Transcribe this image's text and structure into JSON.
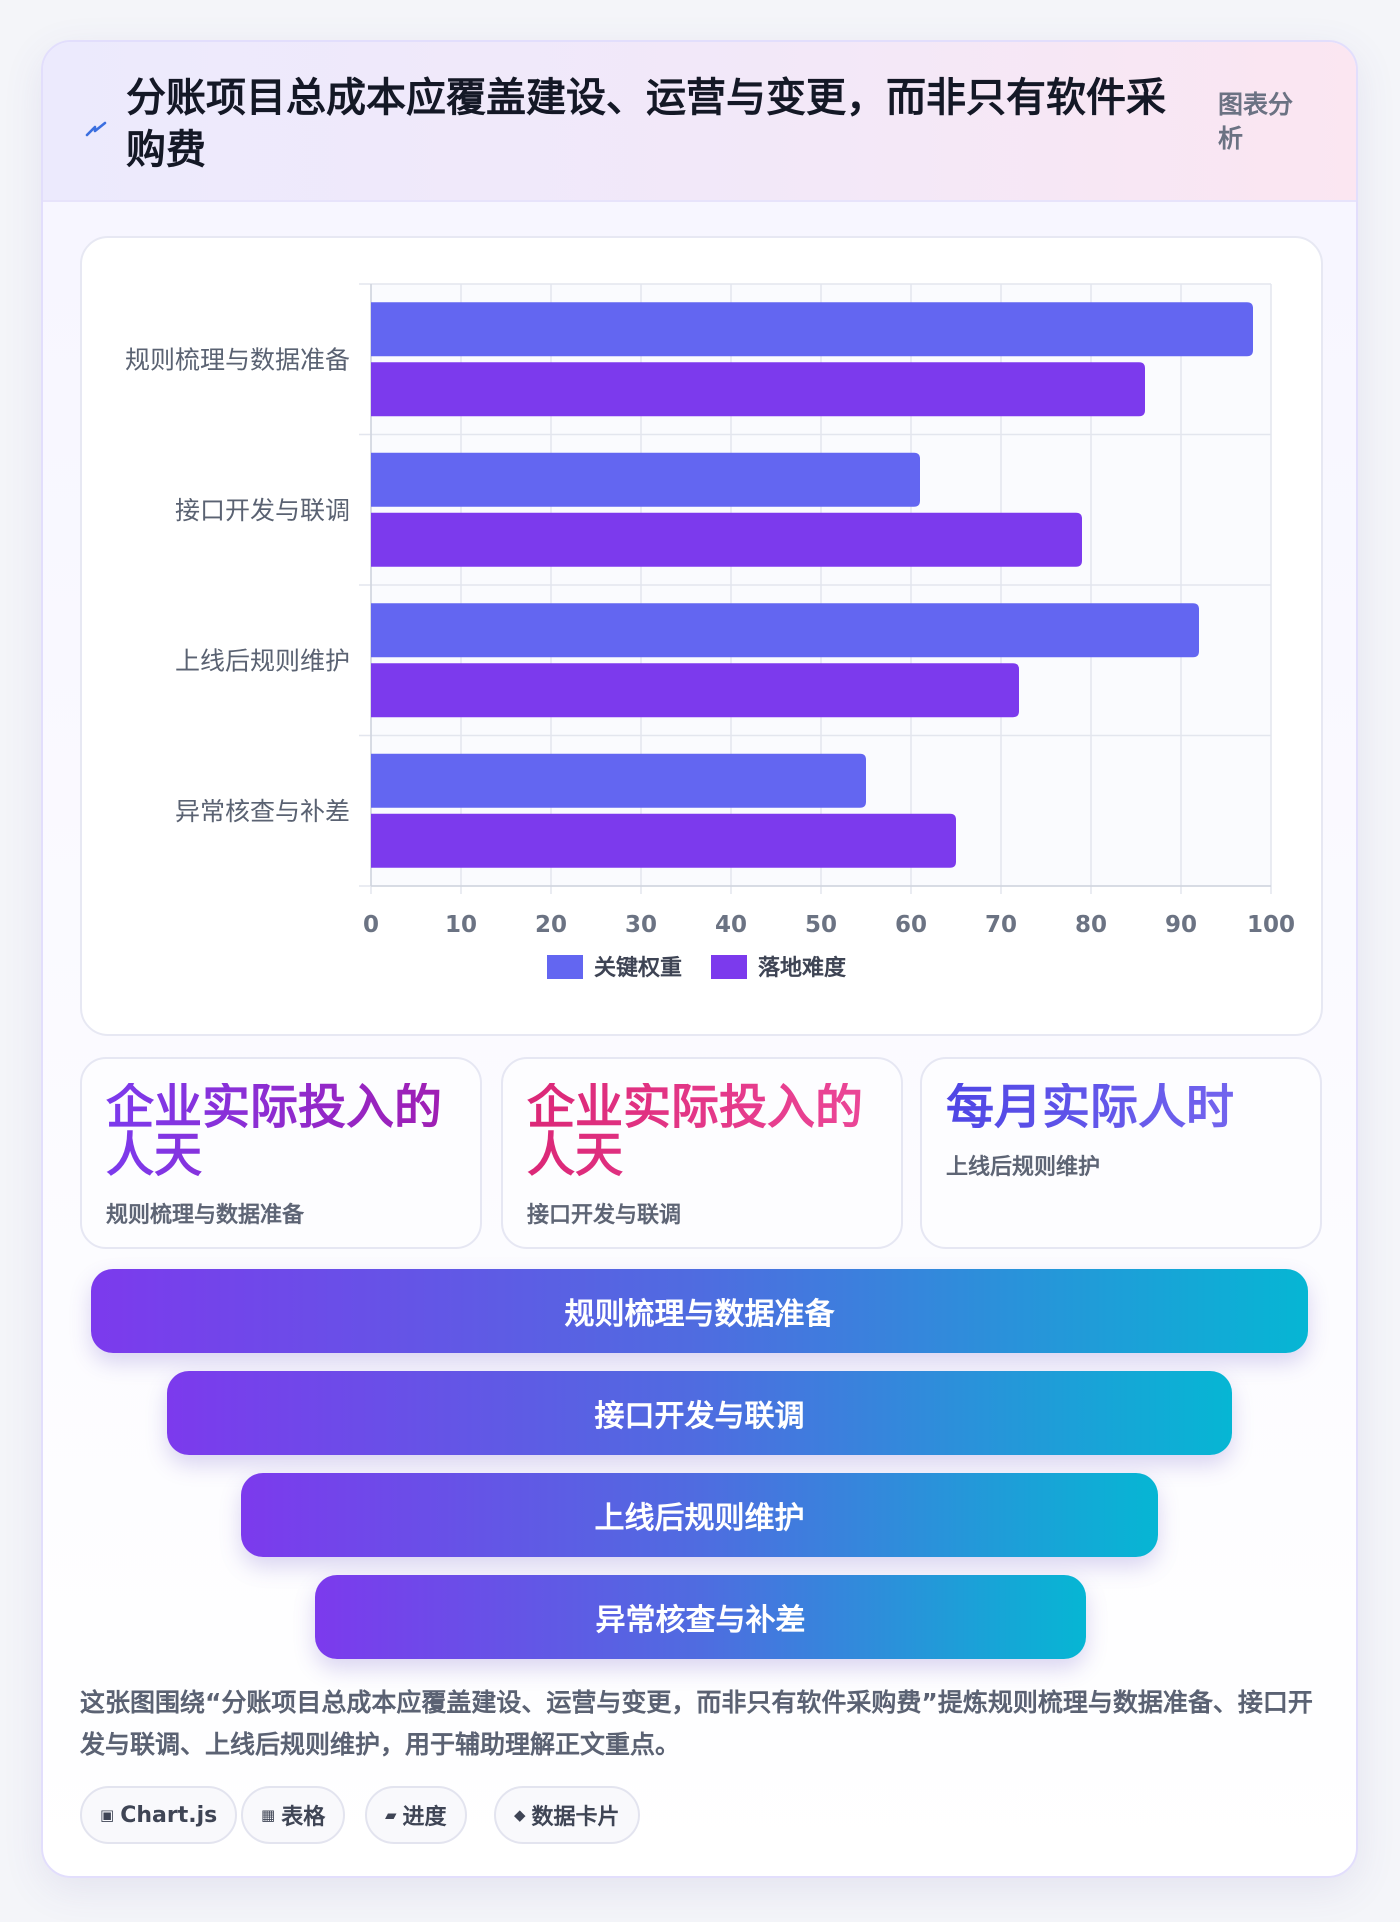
{
  "header": {
    "title": "分账项目总成本应覆盖建设、运营与变更，而非只有软件采购费",
    "tag": "图表分析",
    "icon": "bolt-icon"
  },
  "chart_data": {
    "type": "bar",
    "orientation": "horizontal",
    "categories": [
      "规则梳理与数据准备",
      "接口开发与联调",
      "上线后规则维护",
      "异常核查与补差"
    ],
    "series": [
      {
        "name": "关键权重",
        "values": [
          98,
          61,
          92,
          55
        ],
        "color": "#6366f1"
      },
      {
        "name": "落地难度",
        "values": [
          86,
          79,
          72,
          65
        ],
        "color": "#7c3aed"
      }
    ],
    "xlim": [
      0,
      100
    ],
    "xticks": [
      "0",
      "10",
      "20",
      "30",
      "40",
      "50",
      "60",
      "70",
      "80",
      "90",
      "100"
    ],
    "grid": true,
    "legend_position": "bottom"
  },
  "stats": [
    {
      "value": "企业实际投入的人天",
      "label": "规则梳理与数据准备",
      "gradient": [
        "#7c3aed",
        "#a21caf"
      ]
    },
    {
      "value": "企业实际投入的人天",
      "label": "接口开发与联调",
      "gradient": [
        "#db2777",
        "#ec4899"
      ]
    },
    {
      "value": "每月实际人时",
      "label": "上线后规则维护",
      "gradient": [
        "#4f46e5",
        "#7c6cf0"
      ]
    }
  ],
  "funnel": [
    "规则梳理与数据准备",
    "接口开发与联调",
    "上线后规则维护",
    "异常核查与补差"
  ],
  "summary": "这张图围绕“分账项目总成本应覆盖建设、运营与变更，而非只有软件采购费”提炼规则梳理与数据准备、接口开发与联调、上线后规则维护，用于辅助理解正文重点。",
  "chips": [
    {
      "icon": "▣",
      "label": "Chart.js"
    },
    {
      "icon": "▦",
      "label": "表格"
    },
    {
      "icon": "▰",
      "label": "进度"
    },
    {
      "icon": "◆",
      "label": "数据卡片"
    }
  ]
}
